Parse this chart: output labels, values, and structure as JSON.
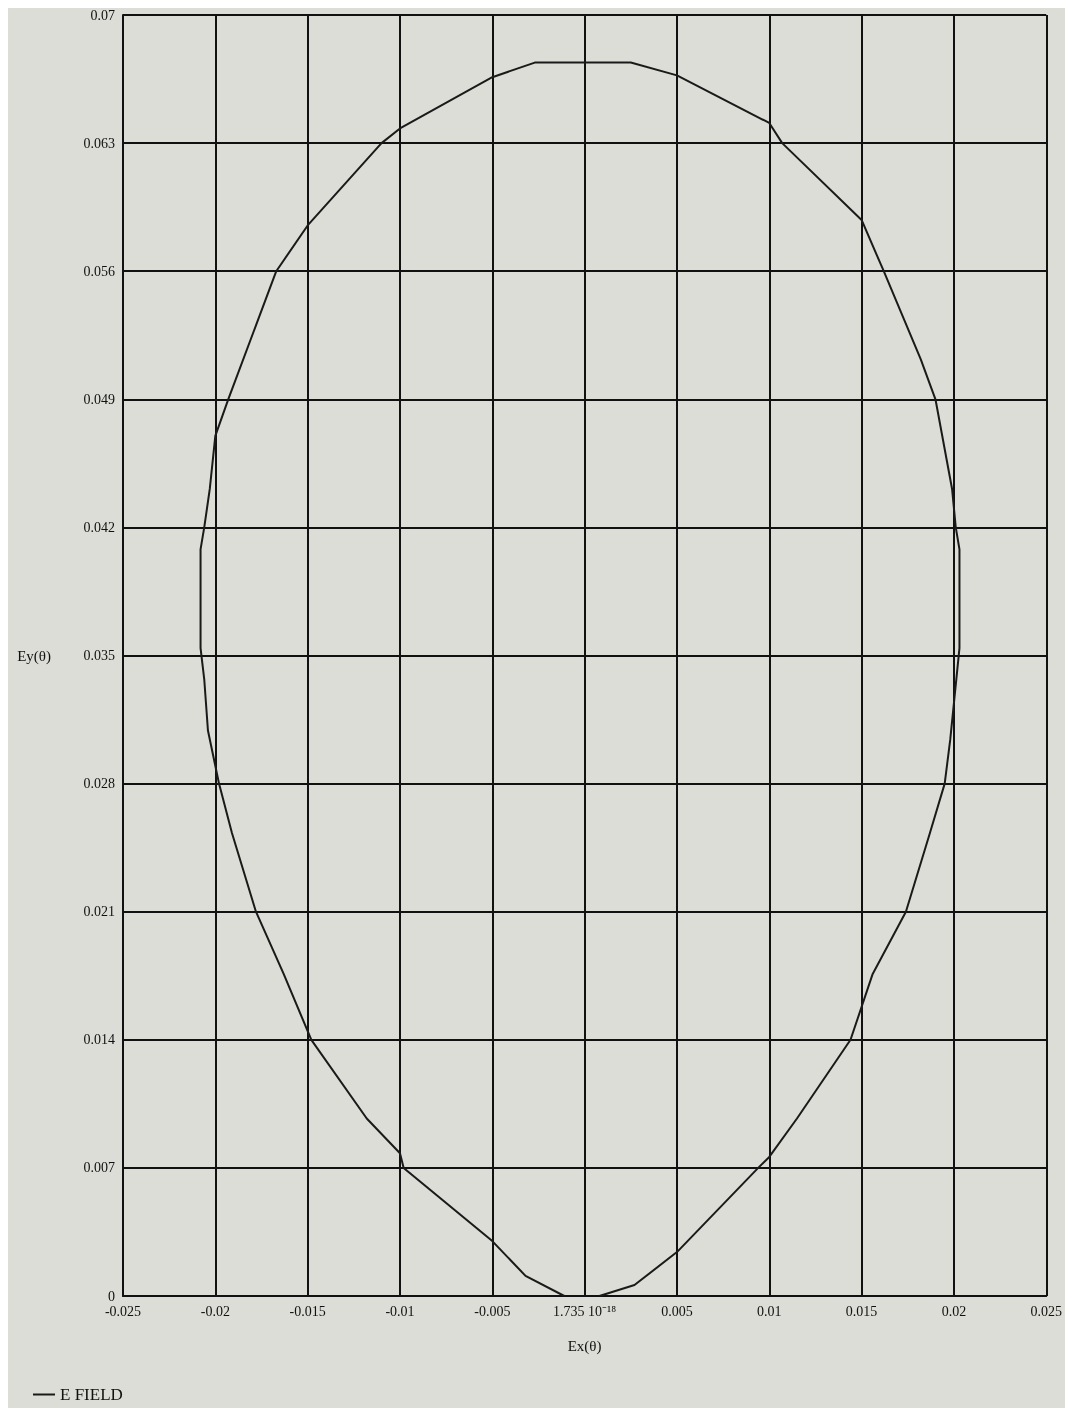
{
  "chart_data": {
    "type": "line",
    "xlabel": "Ex(θ)",
    "ylabel": "Ey(θ)",
    "xlim": [
      -0.025,
      0.025
    ],
    "xticks": [
      -0.025,
      -0.02,
      -0.015,
      -0.01,
      -0.005,
      {
        "value": 0,
        "label": "1.735 10⁻¹⁸"
      },
      0.005,
      0.01,
      0.015,
      0.02,
      0.025
    ],
    "ylim": [
      0,
      0.07
    ],
    "yticks": [
      0,
      0.007,
      0.014,
      0.021,
      0.028,
      0.035,
      0.042,
      0.049,
      0.056,
      0.063,
      0.07
    ],
    "grid": true,
    "legend": "bottom left",
    "marker": "none",
    "line_style": "solid",
    "series": [
      {
        "name": "E FIELD",
        "color": "#1a1a1a",
        "x": [
          -0.0011,
          -0.0032,
          -0.005,
          -0.0098,
          -0.01,
          -0.0118,
          -0.0148,
          -0.0163,
          -0.0178,
          -0.0191,
          -0.0198,
          -0.0204,
          -0.0206,
          -0.0208,
          -0.0208,
          -0.0206,
          -0.0203,
          -0.02,
          -0.0193,
          -0.0167,
          -0.015,
          -0.011,
          -0.01,
          -0.005,
          -0.0027,
          0.0025,
          0.005,
          0.01,
          0.0107,
          0.015,
          0.0162,
          0.0182,
          0.019,
          0.0199,
          0.0201,
          0.0203,
          0.0203,
          0.0198,
          0.0195,
          0.0187,
          0.0174,
          0.0156,
          0.0144,
          0.0115,
          0.01,
          0.0094,
          0.005,
          0.0027,
          0.0008
        ],
        "values": [
          0,
          0.0011,
          0.003,
          0.007,
          0.0078,
          0.0097,
          0.014,
          0.0176,
          0.021,
          0.0253,
          0.028,
          0.0309,
          0.0337,
          0.0354,
          0.0408,
          0.042,
          0.0441,
          0.047,
          0.049,
          0.056,
          0.0585,
          0.063,
          0.0638,
          0.0666,
          0.0674,
          0.0674,
          0.0667,
          0.0641,
          0.063,
          0.0588,
          0.056,
          0.0512,
          0.049,
          0.0441,
          0.042,
          0.0408,
          0.0354,
          0.0304,
          0.028,
          0.0253,
          0.021,
          0.0176,
          0.014,
          0.0097,
          0.0076,
          0.007,
          0.0024,
          0.0006,
          0
        ]
      }
    ]
  }
}
